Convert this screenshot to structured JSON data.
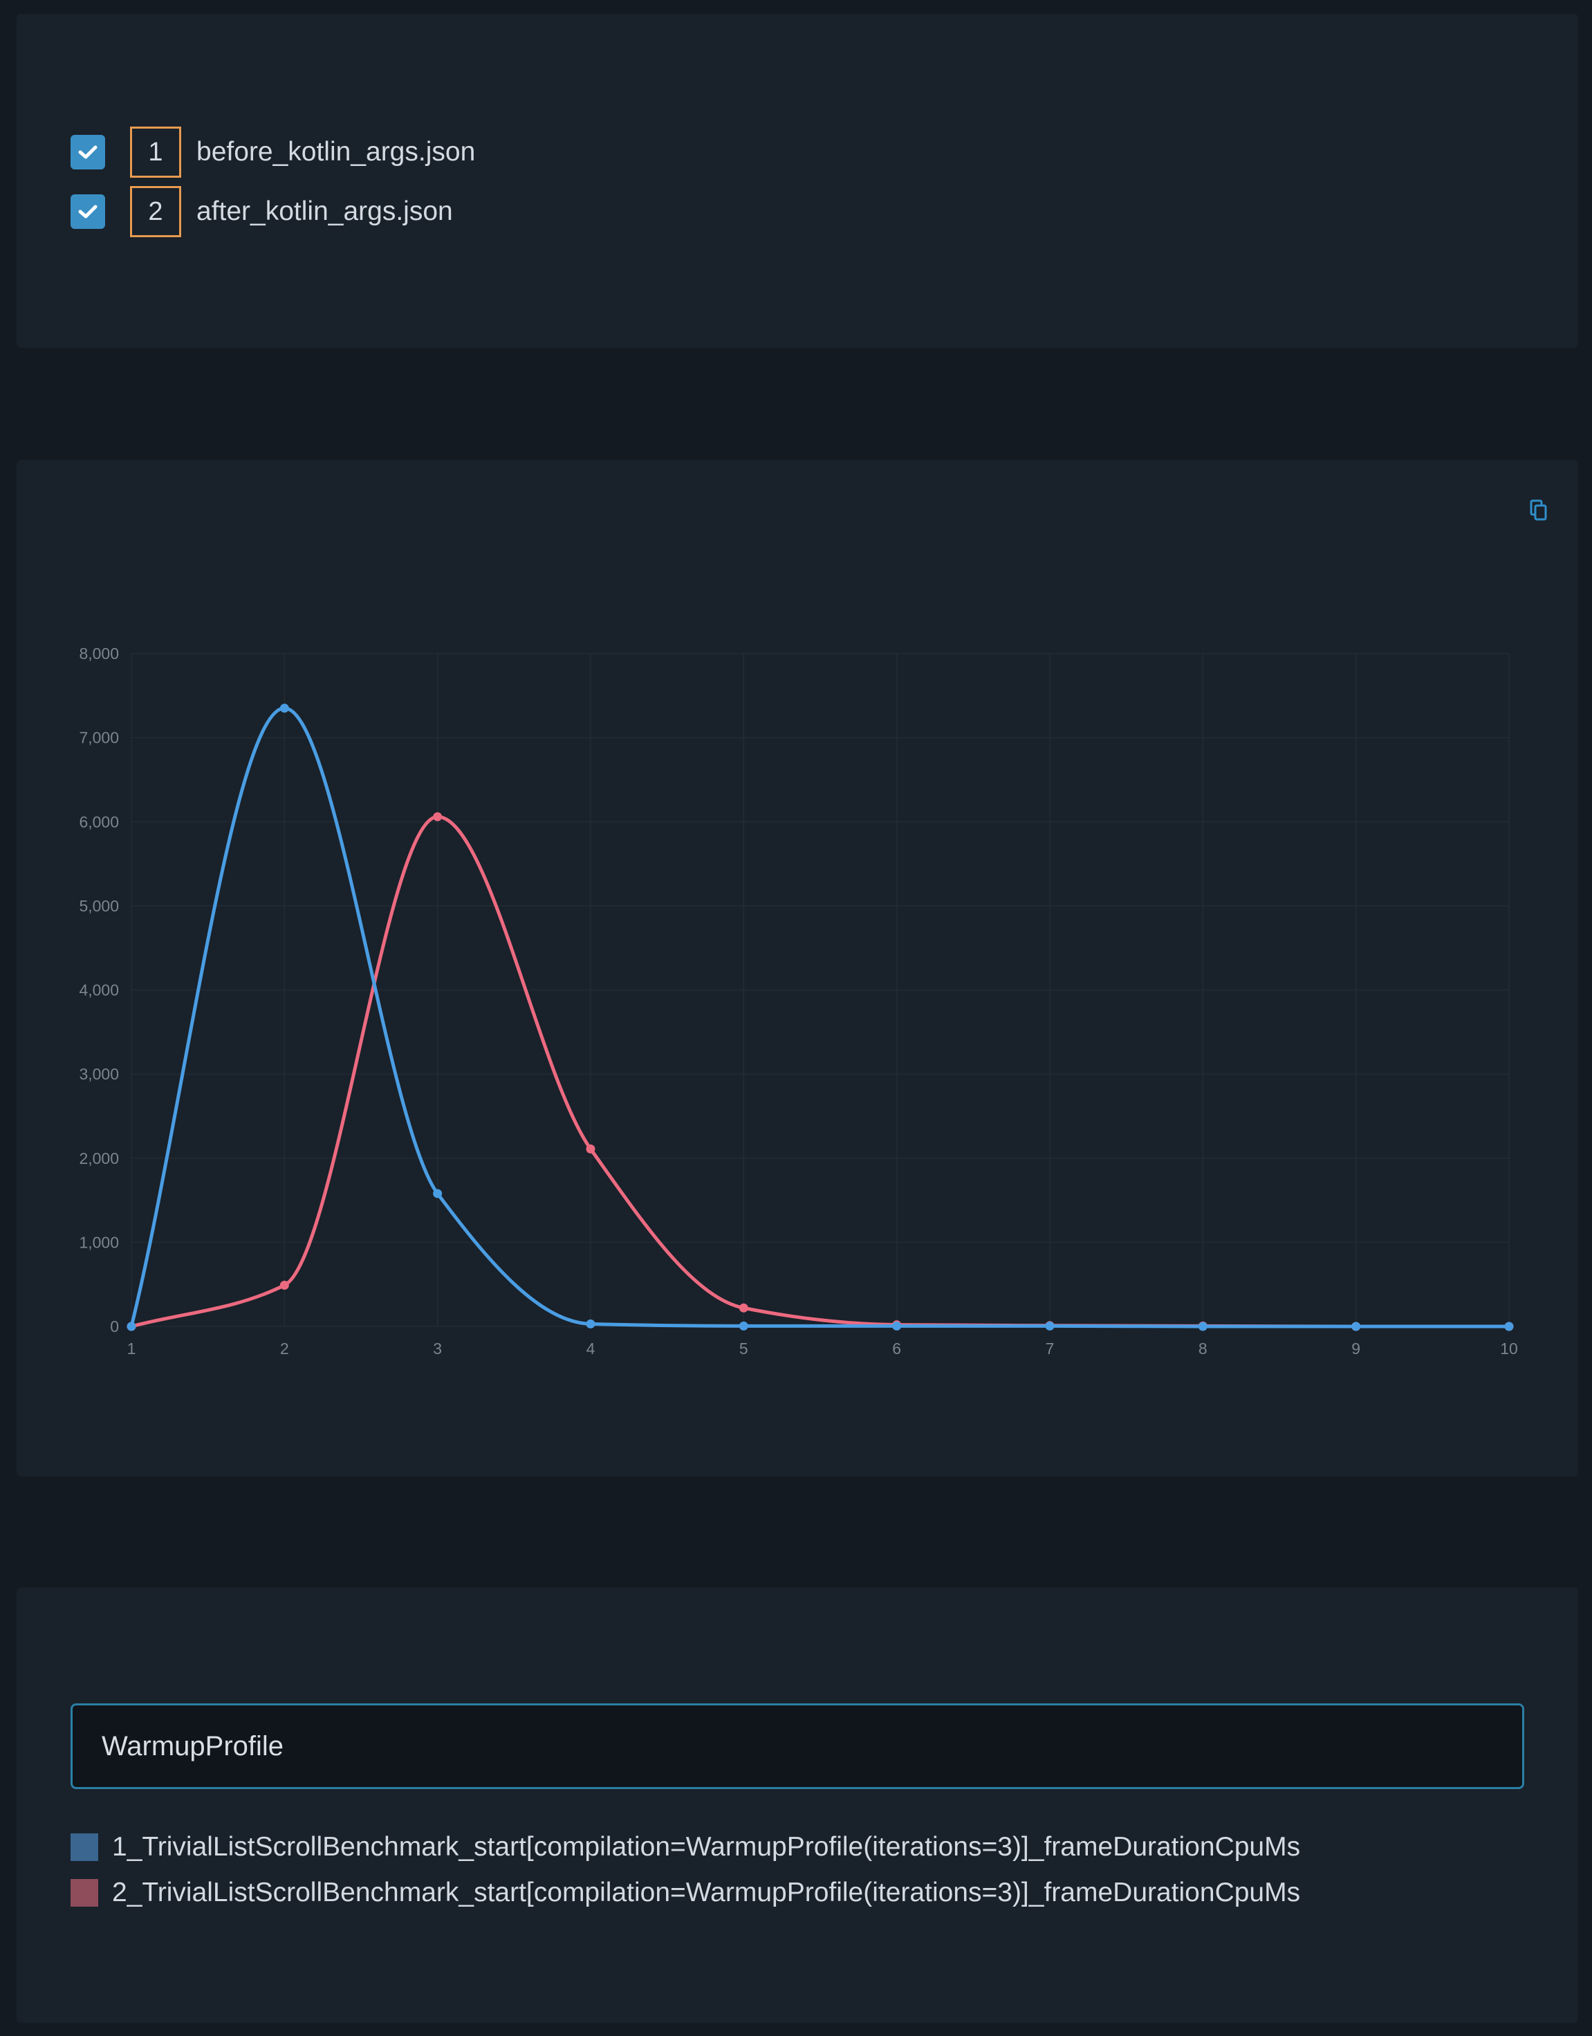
{
  "files": [
    {
      "index": "1",
      "name": "before_kotlin_args.json",
      "checked": true
    },
    {
      "index": "2",
      "name": "after_kotlin_args.json",
      "checked": true
    }
  ],
  "toolbar": {
    "copy_icon": "copy-icon"
  },
  "filter": {
    "value": "WarmupProfile"
  },
  "legend": [
    {
      "label": "1_TrivialListScrollBenchmark_start[compilation=WarmupProfile(iterations=3)]_frameDurationCpuMs",
      "color": "#3a6690"
    },
    {
      "label": "2_TrivialListScrollBenchmark_start[compilation=WarmupProfile(iterations=3)]_frameDurationCpuMs",
      "color": "#8f4d5c"
    }
  ],
  "chart_data": {
    "type": "line",
    "x": [
      1,
      2,
      3,
      4,
      5,
      6,
      7,
      8,
      9,
      10
    ],
    "ylim": [
      0,
      8000
    ],
    "yticks": [
      0,
      1000,
      2000,
      3000,
      4000,
      5000,
      6000,
      7000,
      8000
    ],
    "ytick_labels": [
      "0",
      "1,000",
      "2,000",
      "3,000",
      "4,000",
      "5,000",
      "6,000",
      "7,000",
      "8,000"
    ],
    "xtick_labels": [
      "1",
      "2",
      "3",
      "4",
      "5",
      "6",
      "7",
      "8",
      "9",
      "10"
    ],
    "grid": true,
    "smooth": true,
    "series": [
      {
        "values": [
          0,
          7350,
          1580,
          30,
          5,
          5,
          5,
          0,
          0,
          0
        ],
        "color": "#4a9de3"
      },
      {
        "values": [
          0,
          490,
          6060,
          2110,
          220,
          20,
          10,
          5,
          0,
          0
        ],
        "color": "#ec6a80"
      }
    ]
  }
}
